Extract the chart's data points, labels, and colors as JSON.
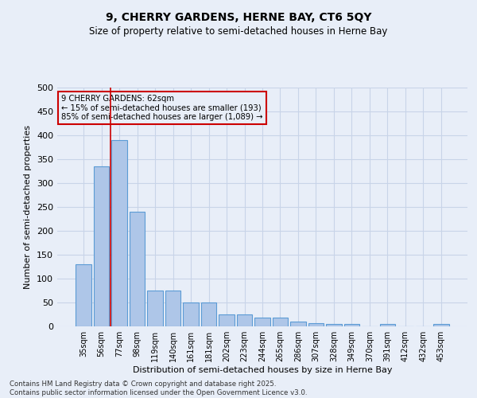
{
  "title1": "9, CHERRY GARDENS, HERNE BAY, CT6 5QY",
  "title2": "Size of property relative to semi-detached houses in Herne Bay",
  "xlabel": "Distribution of semi-detached houses by size in Herne Bay",
  "ylabel": "Number of semi-detached properties",
  "categories": [
    "35sqm",
    "56sqm",
    "77sqm",
    "98sqm",
    "119sqm",
    "140sqm",
    "161sqm",
    "181sqm",
    "202sqm",
    "223sqm",
    "244sqm",
    "265sqm",
    "286sqm",
    "307sqm",
    "328sqm",
    "349sqm",
    "370sqm",
    "391sqm",
    "412sqm",
    "432sqm",
    "453sqm"
  ],
  "values": [
    130,
    335,
    390,
    240,
    75,
    75,
    50,
    50,
    25,
    25,
    18,
    18,
    10,
    7,
    5,
    5,
    0,
    5,
    0,
    0,
    5
  ],
  "bar_color": "#aec6e8",
  "bar_edge_color": "#5b9bd5",
  "vline_x": 1.5,
  "vline_color": "#cc0000",
  "annotation_box_text": "9 CHERRY GARDENS: 62sqm\n← 15% of semi-detached houses are smaller (193)\n85% of semi-detached houses are larger (1,089) →",
  "annotation_box_color": "#cc0000",
  "ylim": [
    0,
    500
  ],
  "yticks": [
    0,
    50,
    100,
    150,
    200,
    250,
    300,
    350,
    400,
    450,
    500
  ],
  "footer1": "Contains HM Land Registry data © Crown copyright and database right 2025.",
  "footer2": "Contains public sector information licensed under the Open Government Licence v3.0.",
  "grid_color": "#c8d4e8",
  "background_color": "#e8eef8",
  "bar_width": 0.85
}
